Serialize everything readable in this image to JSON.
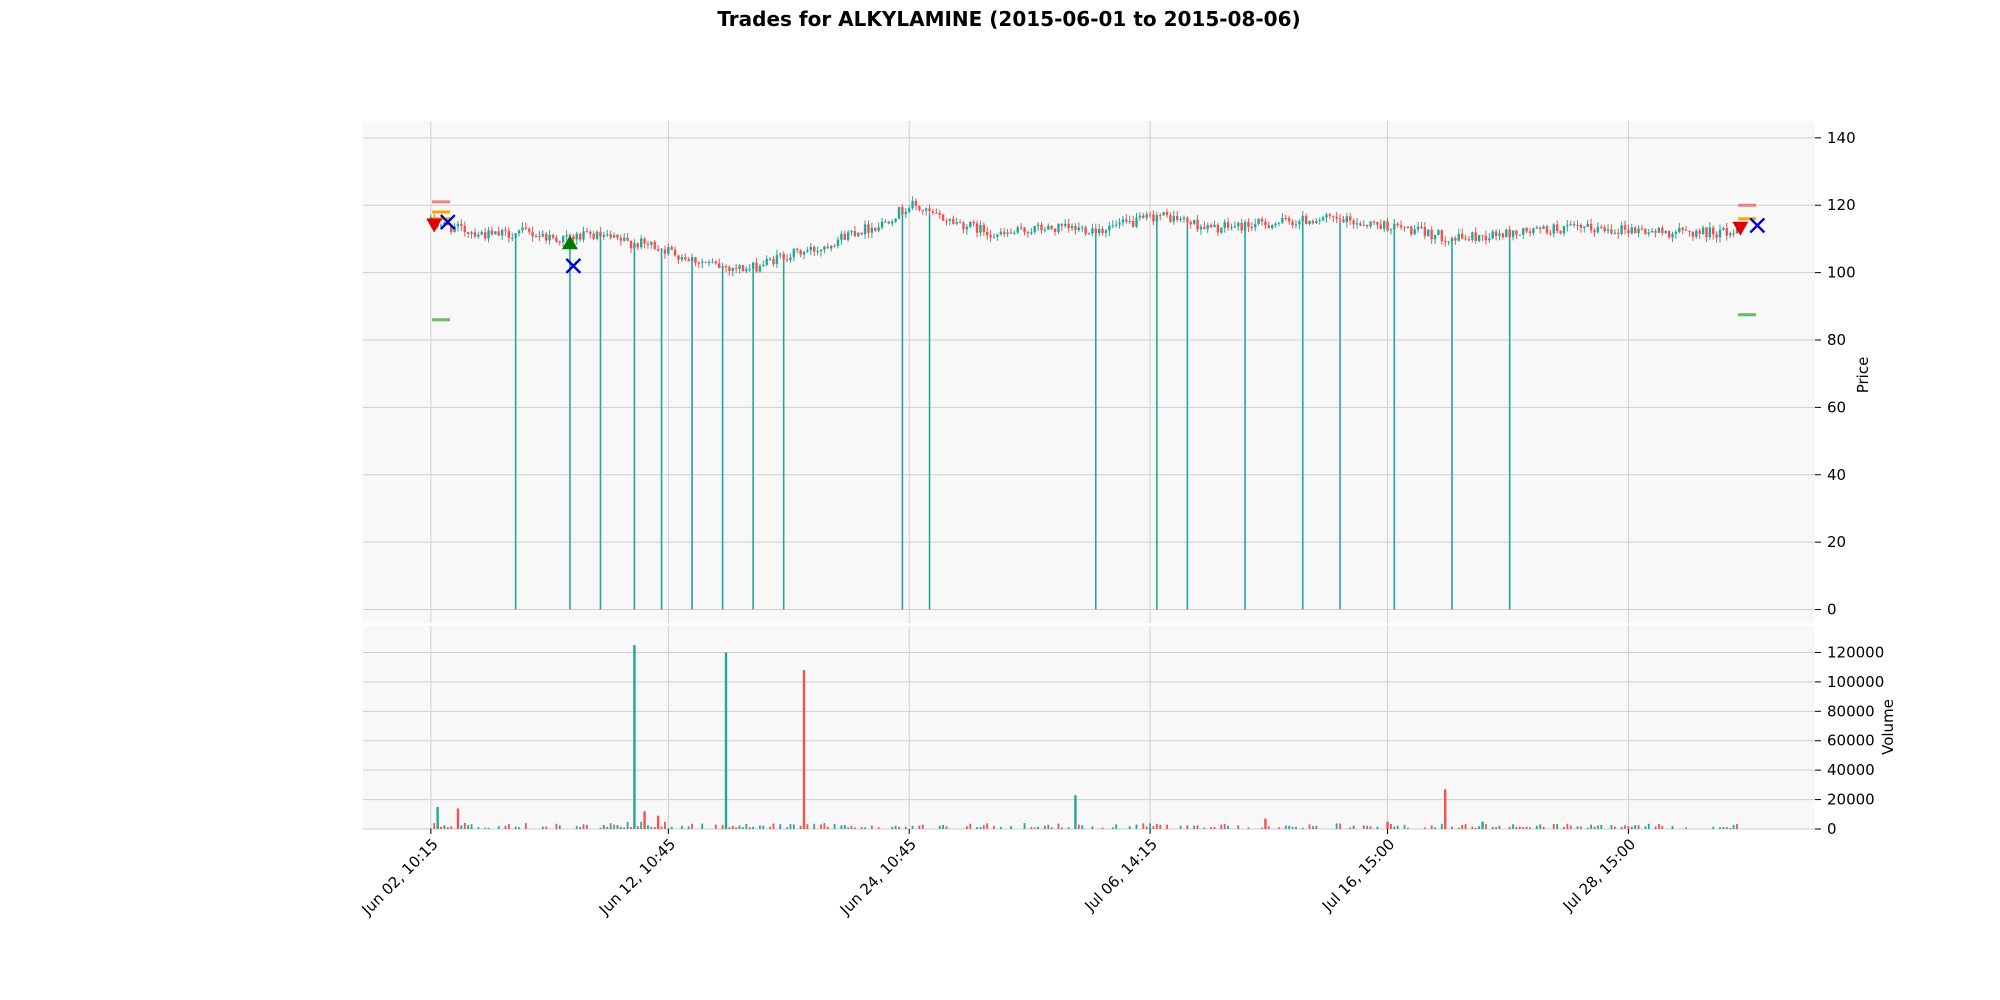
{
  "chart_data": {
    "type": "candlestick",
    "title": "Trades for ALKYLAMINE (2015-06-01 to 2015-08-06)",
    "price_panel": {
      "ylabel": "Price",
      "ylim": [
        -4,
        145
      ],
      "yticks": [
        0,
        20,
        40,
        60,
        80,
        100,
        120,
        140
      ],
      "grid": true
    },
    "volume_panel": {
      "ylabel": "Volume",
      "ylim": [
        0,
        138000
      ],
      "yticks": [
        0,
        20000,
        40000,
        60000,
        80000,
        100000,
        120000
      ],
      "grid": true
    },
    "x_axis": {
      "index_range": [
        -20,
        408
      ],
      "ticks": [
        {
          "index": 0,
          "label": "Jun 02, 10:15"
        },
        {
          "index": 70,
          "label": "Jun 12, 10:45"
        },
        {
          "index": 141,
          "label": "Jun 24, 10:45"
        },
        {
          "index": 212,
          "label": "Jul 06, 14:15"
        },
        {
          "index": 282,
          "label": "Jul 16, 15:00"
        },
        {
          "index": 353,
          "label": "Jul 28, 15:00"
        }
      ]
    },
    "price_path": [
      [
        0,
        115
      ],
      [
        8,
        113
      ],
      [
        18,
        111
      ],
      [
        28,
        112
      ],
      [
        38,
        110
      ],
      [
        48,
        111
      ],
      [
        58,
        109
      ],
      [
        66,
        108
      ],
      [
        74,
        105
      ],
      [
        84,
        102
      ],
      [
        94,
        101
      ],
      [
        104,
        105
      ],
      [
        114,
        107
      ],
      [
        124,
        112
      ],
      [
        132,
        114
      ],
      [
        138,
        118
      ],
      [
        142,
        120
      ],
      [
        148,
        117
      ],
      [
        158,
        114
      ],
      [
        168,
        111
      ],
      [
        178,
        113
      ],
      [
        188,
        113
      ],
      [
        198,
        113
      ],
      [
        208,
        115
      ],
      [
        214,
        117
      ],
      [
        220,
        116
      ],
      [
        230,
        113
      ],
      [
        240,
        114
      ],
      [
        252,
        115
      ],
      [
        262,
        116
      ],
      [
        272,
        115
      ],
      [
        282,
        114
      ],
      [
        292,
        112
      ],
      [
        302,
        110
      ],
      [
        312,
        111
      ],
      [
        322,
        112
      ],
      [
        332,
        113
      ],
      [
        342,
        113
      ],
      [
        352,
        113
      ],
      [
        362,
        112
      ],
      [
        372,
        112
      ],
      [
        385,
        112
      ]
    ],
    "price_spikes": [
      25,
      41,
      50,
      60,
      68,
      77,
      86,
      95,
      104,
      139,
      147,
      196,
      214,
      223,
      240,
      257,
      268,
      284,
      301,
      318
    ],
    "volume_spikes": [
      {
        "index": 60,
        "value": 125000,
        "dir": "up"
      },
      {
        "index": 87,
        "value": 120000,
        "dir": "up"
      },
      {
        "index": 110,
        "value": 108000,
        "dir": "down"
      },
      {
        "index": 190,
        "value": 23000,
        "dir": "up"
      },
      {
        "index": 299,
        "value": 27000,
        "dir": "down"
      },
      {
        "index": 2,
        "value": 15000,
        "dir": "up"
      },
      {
        "index": 8,
        "value": 14000,
        "dir": "down"
      },
      {
        "index": 63,
        "value": 12000,
        "dir": "down"
      },
      {
        "index": 67,
        "value": 9000,
        "dir": "down"
      },
      {
        "index": 246,
        "value": 7000,
        "dir": "down"
      },
      {
        "index": 282,
        "value": 5000,
        "dir": "down"
      },
      {
        "index": 310,
        "value": 5000,
        "dir": "up"
      }
    ],
    "trade_markers": [
      {
        "index": 1,
        "price": 114,
        "marker": "triangle-down",
        "color": "#e00000"
      },
      {
        "index": 5,
        "price": 115,
        "marker": "x",
        "color": "#0000cc"
      },
      {
        "index": 41,
        "price": 109,
        "marker": "triangle-up",
        "color": "#007a00"
      },
      {
        "index": 42,
        "price": 102,
        "marker": "x",
        "color": "#0000cc"
      },
      {
        "index": 386,
        "price": 113,
        "marker": "triangle-down",
        "color": "#e00000"
      },
      {
        "index": 391,
        "price": 114,
        "marker": "x",
        "color": "#0000cc"
      }
    ],
    "level_lines": [
      {
        "index": 3,
        "price": 121,
        "color": "#f08080"
      },
      {
        "index": 3,
        "price": 118,
        "color": "#ffa500"
      },
      {
        "index": 3,
        "price": 116,
        "color": "#ffa500"
      },
      {
        "index": 3,
        "price": 86,
        "color": "#66bb66"
      },
      {
        "index": 388,
        "price": 120,
        "color": "#f08080"
      },
      {
        "index": 388,
        "price": 116,
        "color": "#ffa500"
      },
      {
        "index": 388,
        "price": 87.5,
        "color": "#66bb66"
      }
    ],
    "colors": {
      "up": "#26a69a",
      "down": "#ef5350",
      "grid": "#cfcfcf",
      "panel_bg": "#f8f8f8"
    }
  }
}
